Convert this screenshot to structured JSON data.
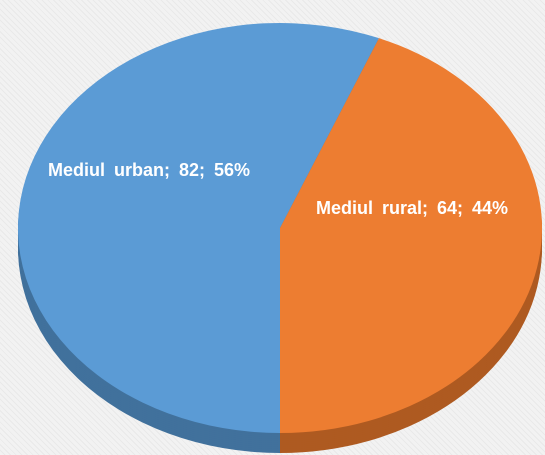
{
  "chart_data": {
    "type": "pie",
    "categories": [
      "Mediul urban",
      "Mediul rural"
    ],
    "values": [
      82,
      64
    ],
    "value_labels": [
      "Mediul urban; 82; 56%",
      "Mediul rural; 64; 44%"
    ],
    "colors": [
      "#5b9bd5",
      "#ed7d31"
    ],
    "side_colors": [
      "#41719c",
      "#ae5a21"
    ]
  }
}
